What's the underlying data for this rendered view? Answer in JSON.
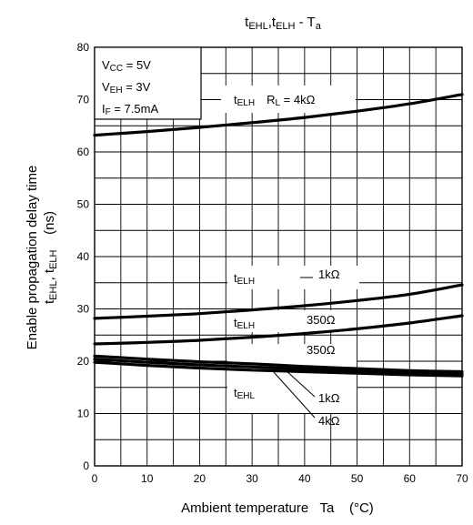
{
  "chart_data": {
    "type": "line",
    "title": {
      "p1": "t",
      "s1": "EHL",
      "p2": ",t",
      "s2": "ELH",
      "p3": " - T",
      "s3": "a"
    },
    "xlabel": "Ambient temperature   Ta    (°C)",
    "ylabel": {
      "line1": "Enable propagation delay time",
      "line2": {
        "a": "t",
        "as": "EHL",
        "b": ", t",
        "bs": "ELH",
        "c": "    (ns)"
      }
    },
    "xlim": [
      0,
      70
    ],
    "ylim": [
      0,
      80
    ],
    "x_ticks": [
      "0",
      "10",
      "20",
      "30",
      "40",
      "50",
      "60",
      "70"
    ],
    "y_ticks": [
      "0",
      "10",
      "20",
      "30",
      "40",
      "50",
      "60",
      "70",
      "80"
    ],
    "grid": true,
    "conditions": [
      {
        "p": "V",
        "s": "CC",
        "r": " = 5V"
      },
      {
        "p": "V",
        "s": "EH",
        "r": " = 3V"
      },
      {
        "p": "I",
        "s": "F",
        "r": " = 7.5mA"
      }
    ],
    "series": [
      {
        "name": "tELH RL = 4kΩ",
        "x": [
          0,
          10,
          20,
          30,
          40,
          50,
          60,
          70
        ],
        "y": [
          63.2,
          63.9,
          64.7,
          65.6,
          66.6,
          67.8,
          69.2,
          71.0
        ]
      },
      {
        "name": "tELH 1kΩ",
        "x": [
          0,
          10,
          20,
          30,
          40,
          50,
          60,
          70
        ],
        "y": [
          28.2,
          28.6,
          29.1,
          29.8,
          30.6,
          31.6,
          32.8,
          34.6
        ]
      },
      {
        "name": "tELH 350Ω",
        "x": [
          0,
          10,
          20,
          30,
          40,
          50,
          60,
          70
        ],
        "y": [
          23.3,
          23.6,
          24.0,
          24.6,
          25.3,
          26.2,
          27.3,
          28.7
        ]
      },
      {
        "name": "tEHL 350Ω",
        "x": [
          0,
          10,
          20,
          30,
          40,
          50,
          60,
          70
        ],
        "y": [
          21.0,
          20.4,
          19.9,
          19.5,
          19.0,
          18.6,
          18.2,
          18.0
        ]
      },
      {
        "name": "tEHL 1kΩ",
        "x": [
          0,
          10,
          20,
          30,
          40,
          50,
          60,
          70
        ],
        "y": [
          20.4,
          19.8,
          19.3,
          18.9,
          18.5,
          18.1,
          17.8,
          17.6
        ]
      },
      {
        "name": "tEHL 4kΩ",
        "x": [
          0,
          10,
          20,
          30,
          40,
          50,
          60,
          70
        ],
        "y": [
          19.8,
          19.2,
          18.7,
          18.3,
          18.0,
          17.7,
          17.4,
          17.2
        ]
      }
    ],
    "annotations": {
      "elh_4k": {
        "p": "t",
        "s": "ELH",
        "r": "R",
        "rs": "L",
        "rr": " = 4kΩ"
      },
      "elh_1k": {
        "p": "t",
        "s": "ELH",
        "r": "1kΩ"
      },
      "elh_350": {
        "p": "t",
        "s": "ELH",
        "r": "350Ω"
      },
      "ehl": {
        "p": "t",
        "s": "EHL",
        "r350": "350Ω",
        "r1k": "1kΩ",
        "r4k": "4kΩ"
      }
    }
  }
}
